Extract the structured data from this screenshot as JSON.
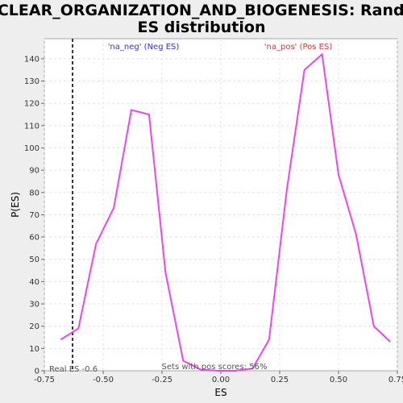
{
  "chart_data": {
    "type": "line",
    "title_line1": "NUCLEAR_ORGANIZATION_AND_BIOGENESIS: Random",
    "title_line2": "ES distribution",
    "xlabel": "ES",
    "ylabel": "P(ES)",
    "xlim": [
      -0.75,
      0.75
    ],
    "ylim": [
      0,
      149
    ],
    "xticks": [
      -0.75,
      -0.5,
      -0.25,
      0.0,
      0.25,
      0.5,
      0.75
    ],
    "xtick_labels": [
      "-0.75",
      "-0.50",
      "-0.25",
      "0.00",
      "0.25",
      "0.50",
      "0.75"
    ],
    "yticks": [
      0,
      10,
      20,
      30,
      40,
      50,
      60,
      70,
      80,
      90,
      100,
      110,
      120,
      130,
      140
    ],
    "grid": true,
    "series": [
      {
        "color": "#ee44ee",
        "x": [
          -0.68,
          -0.605,
          -0.53,
          -0.455,
          -0.38,
          -0.305,
          -0.235,
          -0.16,
          -0.085,
          -0.01,
          0.06,
          0.135,
          0.205,
          0.28,
          0.355,
          0.43,
          0.5,
          0.575,
          0.65,
          0.72
        ],
        "y": [
          14,
          19,
          57,
          73,
          117,
          115,
          44,
          4.5,
          0.5,
          0,
          0,
          1,
          14,
          81,
          135,
          142,
          88,
          61,
          20,
          13
        ]
      }
    ],
    "real_es": -0.63,
    "annotations": {
      "neg_label": "'na_neg' (Neg ES)",
      "neg_color": "#3333cc",
      "pos_label": "'na_pos' (Pos ES)",
      "pos_color": "#dd3333",
      "real_es_label": "Real ES -0.6",
      "pos_scores_label": "Sets with pos scores: 56%"
    }
  }
}
